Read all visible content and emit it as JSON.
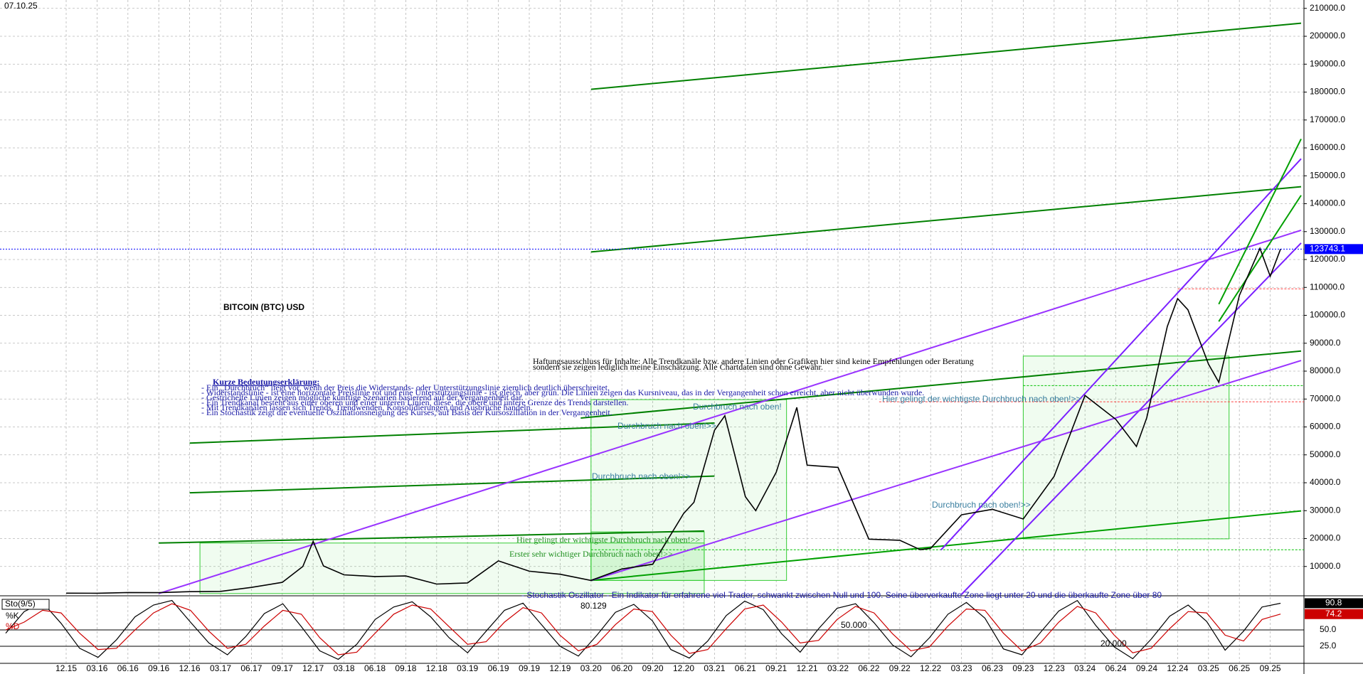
{
  "chart_data": {
    "type": "line",
    "date": "07.10.25",
    "title": "BITCOIN (BTC) USD",
    "categories": [
      "12.15",
      "03.16",
      "06.16",
      "09.16",
      "12.16",
      "03.17",
      "06.17",
      "09.17",
      "12.17",
      "03.18",
      "06.18",
      "09.18",
      "12.18",
      "03.19",
      "06.19",
      "09.19",
      "12.19",
      "03.20",
      "06.20",
      "09.20",
      "12.20",
      "03.21",
      "06.21",
      "09.21",
      "12.21",
      "03.22",
      "06.22",
      "09.22",
      "12.22",
      "03.23",
      "06.23",
      "09.23",
      "12.23",
      "03.24",
      "06.24",
      "09.24",
      "12.24",
      "03.25",
      "06.25",
      "09.25"
    ],
    "x": [
      "12.15",
      "03.16",
      "06.16",
      "09.16",
      "12.16",
      "03.17",
      "06.17",
      "09.17",
      "11.17",
      "12.17",
      "01.18",
      "03.18",
      "06.18",
      "09.18",
      "12.18",
      "03.19",
      "06.19",
      "09.19",
      "12.19",
      "03.20",
      "06.20",
      "09.20",
      "12.20",
      "01.21",
      "03.21",
      "04.21",
      "06.21",
      "07.21",
      "09.21",
      "11.21",
      "12.21",
      "03.22",
      "06.22",
      "09.22",
      "11.22",
      "12.22",
      "03.23",
      "06.23",
      "09.23",
      "12.23",
      "03.24",
      "06.24",
      "08.24",
      "09.24",
      "11.24",
      "12.24",
      "01.25",
      "03.25",
      "04.25",
      "06.25",
      "08.25",
      "09.25",
      "10.25"
    ],
    "values": [
      430,
      420,
      670,
      610,
      960,
      1080,
      2500,
      4300,
      10000,
      19000,
      10200,
      7000,
      6400,
      6600,
      3700,
      4100,
      12000,
      8300,
      7200,
      5000,
      9100,
      10800,
      29000,
      33000,
      58800,
      64000,
      35000,
      30000,
      43800,
      67000,
      46300,
      45500,
      19800,
      19400,
      16000,
      16500,
      28500,
      30500,
      27000,
      42300,
      71300,
      62700,
      53000,
      63300,
      96000,
      106000,
      102000,
      82500,
      76000,
      107100,
      124000,
      114000,
      123743.1
    ],
    "color": "#000000",
    "ylim": [
      0,
      213000
    ],
    "yticks": [
      {
        "value": 10000,
        "label": "10000.0"
      },
      {
        "value": 20000,
        "label": "20000.0"
      },
      {
        "value": 30000,
        "label": "30000.0"
      },
      {
        "value": 40000,
        "label": "40000.0"
      },
      {
        "value": 50000,
        "label": "50000.0"
      },
      {
        "value": 60000,
        "label": "60000.0"
      },
      {
        "value": 70000,
        "label": "70000.0"
      },
      {
        "value": 80000,
        "label": "80000.0"
      },
      {
        "value": 90000,
        "label": "90000.0"
      },
      {
        "value": 100000,
        "label": "100000.0"
      },
      {
        "value": 110000,
        "label": "110000.0"
      },
      {
        "value": 120000,
        "label": "120000.0"
      },
      {
        "value": 130000,
        "label": "130000.0"
      },
      {
        "value": 140000,
        "label": "140000.0"
      },
      {
        "value": 150000,
        "label": "150000.0"
      },
      {
        "value": 160000,
        "label": "160000.0"
      },
      {
        "value": 170000,
        "label": "170000.0"
      },
      {
        "value": 180000,
        "label": "180000.0"
      },
      {
        "value": 190000,
        "label": "190000.0"
      },
      {
        "value": 200000,
        "label": "200000.0"
      },
      {
        "value": 210000,
        "label": "210000.0"
      }
    ],
    "grid": true,
    "last_price": 123743.1,
    "last_price_color": "#0000ff",
    "trendlines": [
      {
        "color": "#008000",
        "points": [
          [
            "03.20",
            181000
          ],
          [
            "12.25",
            204700
          ]
        ]
      },
      {
        "color": "#008000",
        "points": [
          [
            "03.20",
            122700
          ],
          [
            "12.25",
            146100
          ]
        ]
      },
      {
        "color": "#008000",
        "points": [
          [
            "02.20",
            63200
          ],
          [
            "12.25",
            87200
          ]
        ]
      },
      {
        "color": "#008000",
        "points": [
          [
            "12.16",
            54200
          ],
          [
            "03.21",
            61400
          ]
        ]
      },
      {
        "color": "#008000",
        "points": [
          [
            "12.16",
            36400
          ],
          [
            "03.21",
            42400
          ]
        ]
      },
      {
        "color": "#008000",
        "points": [
          [
            "09.16",
            18400
          ],
          [
            "02.21",
            22700
          ]
        ]
      },
      {
        "color": "#00a000",
        "points": [
          [
            "03.20",
            5000
          ],
          [
            "12.25",
            29900
          ]
        ]
      },
      {
        "color": "#9933ff",
        "points": [
          [
            "09.16",
            300
          ],
          [
            "12.25",
            130500
          ]
        ]
      },
      {
        "color": "#7a1fff",
        "points": [
          [
            "01.23",
            15900
          ],
          [
            "12.25",
            156100
          ]
        ]
      },
      {
        "color": "#7a1fff",
        "points": [
          [
            "03.23",
            0
          ],
          [
            "12.25",
            125900
          ]
        ]
      },
      {
        "color": "#9933ff",
        "points": [
          [
            "03.20",
            5000
          ],
          [
            "12.25",
            83800
          ]
        ]
      },
      {
        "color": "#00a000",
        "points": [
          [
            "04.25",
            104000
          ],
          [
            "12.25",
            163200
          ]
        ]
      },
      {
        "color": "#00a000",
        "points": [
          [
            "04.25",
            97800
          ],
          [
            "12.25",
            143000
          ]
        ]
      }
    ],
    "boxes": [
      {
        "from": "01.17",
        "to": "02.21",
        "low": 300,
        "high": 18400
      },
      {
        "from": "03.20",
        "to": "10.21",
        "low": 5000,
        "high": 69800
      },
      {
        "from": "09.23",
        "to": "05.25",
        "low": 19900,
        "high": 85400
      },
      {
        "from": "03.20",
        "to": "02.21",
        "low": 5000,
        "high": 22400
      }
    ],
    "levels": [
      {
        "value": 74800,
        "color": "#00c000",
        "from": "09.23"
      },
      {
        "value": 69000,
        "color": "#ff4040",
        "from": "07.22"
      },
      {
        "value": 109500,
        "color": "#ff4040",
        "from": "12.24"
      },
      {
        "value": 16000,
        "color": "#00c000",
        "from": "03.20"
      }
    ],
    "annotations": [
      "Kurze Bedeutungserklärung:",
      "- Ein „Durchbruch“ liegt vor, wenn der Preis die Widerstands- oder Unterstützungslinie ziemlich deutlich überschreitet.",
      "- Widerstandslinie - ist eine horizontale Preislinie rot und eine Unterstützungslinie - ist gleich, aber grün. Die Linien zeigen das Kursniveau, das in der Vergangenheit schon erreicht, aber nicht überwunden wurde.",
      "- Gestrichelte Linien zeigen mögliche künftige Szenarien basierend auf der Vergangenheit dar.",
      "- Ein Trendkanal besteht aus einer oberen und einer unteren Linien, diese, die obere und untere Grenze des Trends darstellen.",
      "- Mit Trendkanälen lassen sich Trends, Trendwenden, Konsolidierungen und Ausbrüche handeln.",
      "- Ein Stochastik zeigt die eventuelle Oszillationsneigung des Kurses, auf Basis der Kursoszillation in der Vergangenheit.",
      "Haftungsausschluss für Inhalte: Alle Trendkanäle bzw. andere Linien oder Grafiken hier sind keine Empfehlungen oder Beratung",
      "sondern sie zeigen lediglich meine Einschätzung. Alle Chartdaten sind ohne Gewähr.",
      "Hier gelingt der wichtigste Durchbruch nach oben!>>",
      "Durchbruch nach oben!>>",
      "Durchbruch nach oben!",
      "Durchbruch nach oben!>>",
      "Durchbruch nach oben!>>",
      "Hier gelingt der wichtigste Durchbruch nach oben!>>",
      "Erster sehr wichtiger Durchbruch nach oben!>>",
      "- Stochastik Oszillator - Ein Indikator für erfahrene viel-Trader, schwankt zwischen Null und 100. Seine überverkaufte Zone liegt unter 20 und die überkaufte Zone über 80",
      "80.129",
      "50.000",
      "20.000"
    ]
  },
  "stochastic": {
    "title": "Sto(9/5)",
    "ylim": [
      0,
      100
    ],
    "yticks": [
      {
        "value": 25,
        "label": "25.0"
      },
      {
        "value": 50,
        "label": "50.0"
      }
    ],
    "series": [
      {
        "name": "%K",
        "color": "#000000",
        "values": [
          45,
          78,
          92,
          60,
          22,
          8,
          35,
          70,
          88,
          95,
          62,
          30,
          12,
          40,
          75,
          90,
          55,
          18,
          5,
          28,
          66,
          85,
          93,
          70,
          38,
          15,
          48,
          80,
          91,
          58,
          25,
          10,
          42,
          77,
          89,
          64,
          20,
          7,
          33,
          72,
          94,
          81,
          44,
          16,
          52,
          83,
          90,
          61,
          27,
          9,
          38,
          74,
          92,
          68,
          21,
          12,
          46,
          79,
          95,
          57,
          24,
          6,
          36,
          71,
          88,
          63,
          19,
          48,
          85,
          90.8
        ]
      },
      {
        "name": "%D",
        "color": "#cc0000",
        "values": [
          50,
          62,
          80,
          76,
          45,
          20,
          22,
          50,
          76,
          90,
          80,
          48,
          22,
          28,
          56,
          80,
          74,
          38,
          12,
          16,
          45,
          74,
          88,
          82,
          55,
          28,
          32,
          62,
          84,
          76,
          42,
          18,
          28,
          58,
          82,
          78,
          42,
          14,
          20,
          52,
          82,
          88,
          62,
          30,
          34,
          66,
          86,
          76,
          44,
          18,
          24,
          56,
          82,
          80,
          45,
          18,
          30,
          62,
          86,
          76,
          42,
          15,
          22,
          52,
          78,
          76,
          42,
          33,
          66,
          74.2
        ]
      }
    ]
  }
}
